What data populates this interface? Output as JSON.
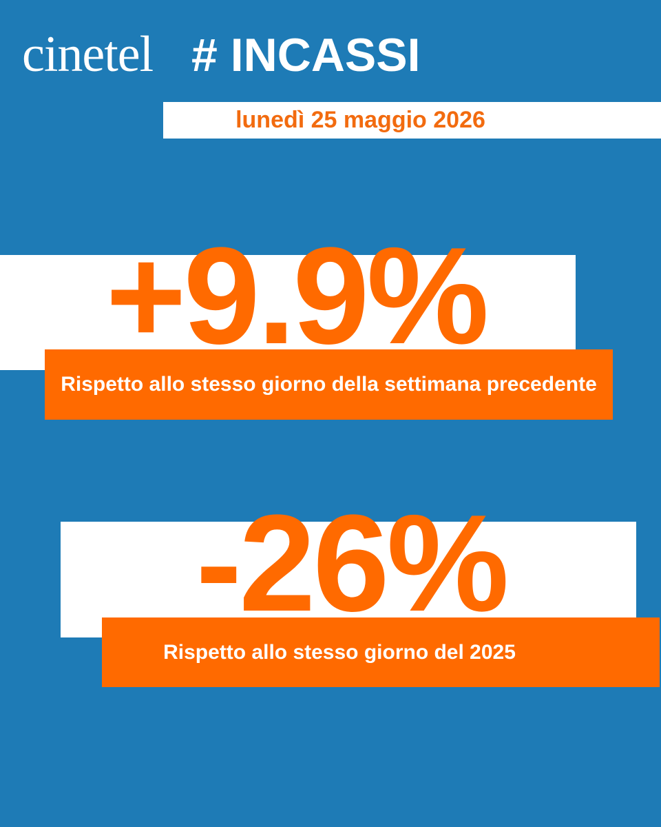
{
  "header": {
    "logo": "cinetel",
    "title": "# INCASSI",
    "date": "lunedì 25 maggio 2026"
  },
  "stats": [
    {
      "value": "+9.9%",
      "caption": "Rispetto allo stesso giorno della settimana precedente"
    },
    {
      "value": "-26%",
      "caption": "Rispetto allo stesso giorno del 2025"
    }
  ]
}
